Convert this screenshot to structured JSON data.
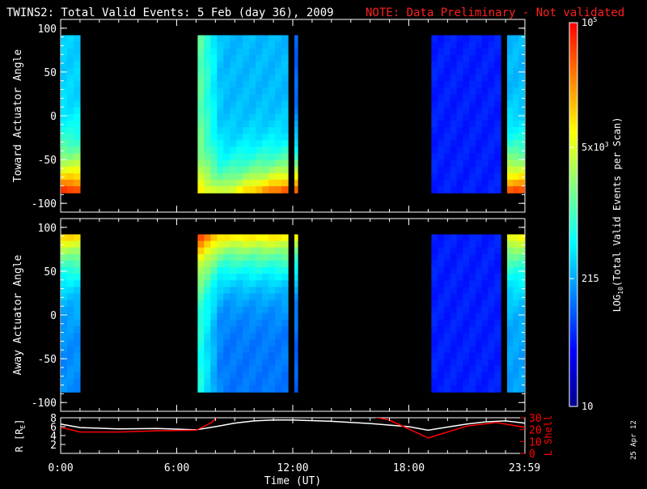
{
  "header": {
    "title": "TWINS2: Total Valid Events:  5 Feb (day  36), 2009",
    "note": "NOTE: Data Preliminary - Not validated",
    "note_color": "#ff2020"
  },
  "footer": {
    "date_stamp": "25 Apr 12"
  },
  "colorbar": {
    "label_main": "LOG",
    "label_sub": "10",
    "label_rest": "(Total Valid Events per Scan)",
    "ticks": [
      {
        "value": 10,
        "base": "10",
        "exp": ""
      },
      {
        "value": 215,
        "base": "215",
        "exp": ""
      },
      {
        "value": 5000,
        "base": "5x10",
        "exp": "3"
      },
      {
        "value": 100000,
        "base": "10",
        "exp": "5"
      }
    ],
    "range": [
      10,
      100000
    ],
    "scale": "log",
    "colormap": [
      "#00008f",
      "#0000ff",
      "#0080ff",
      "#00ffff",
      "#80ff80",
      "#ffff00",
      "#ff8000",
      "#ff0000"
    ]
  },
  "chart_data": [
    {
      "type": "heatmap",
      "ylabel": "Toward Actuator Angle",
      "ylim": [
        -110,
        110
      ],
      "yticks": [
        "100",
        "50",
        "0",
        "-50",
        "-100"
      ],
      "ytick_values": [
        100,
        50,
        0,
        -50,
        -100
      ],
      "x_range_hours": [
        0,
        24
      ],
      "data_y_range": [
        -88,
        92
      ],
      "segments": [
        {
          "start": "00:00",
          "end": "01:00",
          "base_log": 2.5,
          "edge_log": 4.7,
          "edge": "bottom"
        },
        {
          "start": "07:05",
          "end": "11:45",
          "base_log": 2.4,
          "edge_log": 4.6,
          "edge": "bottom-right"
        },
        {
          "start": "12:05",
          "end": "12:15",
          "base_log": 2.0,
          "edge_log": 4.6,
          "edge": "bottom"
        },
        {
          "start": "19:10",
          "end": "22:45",
          "base_log": 1.7,
          "edge_log": 2.1,
          "edge": "none"
        },
        {
          "start": "23:05",
          "end": "23:59",
          "base_log": 2.4,
          "edge_log": 4.6,
          "edge": "bottom"
        }
      ]
    },
    {
      "type": "heatmap",
      "ylabel": "Away Actuator Angle",
      "ylim": [
        -110,
        110
      ],
      "yticks": [
        "100",
        "50",
        "0",
        "-50",
        "-100"
      ],
      "ytick_values": [
        100,
        50,
        0,
        -50,
        -100
      ],
      "x_range_hours": [
        0,
        24
      ],
      "data_y_range": [
        -88,
        92
      ],
      "segments": [
        {
          "start": "00:00",
          "end": "01:00",
          "base_log": 2.2,
          "edge_log": 4.0,
          "edge": "top"
        },
        {
          "start": "07:05",
          "end": "11:45",
          "base_log": 2.1,
          "edge_log": 3.9,
          "edge": "top"
        },
        {
          "start": "12:05",
          "end": "12:15",
          "base_log": 2.0,
          "edge_log": 3.8,
          "edge": "top"
        },
        {
          "start": "19:10",
          "end": "22:45",
          "base_log": 1.7,
          "edge_log": 2.0,
          "edge": "none"
        },
        {
          "start": "23:05",
          "end": "23:59",
          "base_log": 2.3,
          "edge_log": 3.8,
          "edge": "top"
        }
      ]
    },
    {
      "type": "line",
      "xlabel": "Time (UT)",
      "xticks": [
        "0:00",
        "6:00",
        "12:00",
        "18:00",
        "23:59"
      ],
      "xtick_hours": [
        0,
        6,
        12,
        18,
        23.983
      ],
      "ylabel_left": "R [R",
      "ylabel_left_sub": "E",
      "ylabel_left_end": "]",
      "ylim_left": [
        0,
        8
      ],
      "yticks_left": [
        "8",
        "6",
        "4",
        "2"
      ],
      "ytick_left_values": [
        8,
        6,
        4,
        2
      ],
      "ylabel_right": "L Shell",
      "ylim_right": [
        0,
        30
      ],
      "yticks_right": [
        "30",
        "20",
        "10",
        "0"
      ],
      "ytick_right_values": [
        30,
        20,
        10,
        0
      ],
      "series": [
        {
          "name": "R",
          "color": "#ffffff",
          "axis": "left",
          "x": [
            0,
            1,
            3,
            5,
            7,
            8,
            9,
            10,
            11,
            12,
            14,
            16,
            18,
            19,
            20,
            21,
            22,
            23,
            24
          ],
          "y": [
            6.6,
            5.8,
            5.5,
            5.6,
            5.3,
            6.0,
            6.8,
            7.3,
            7.5,
            7.5,
            7.2,
            6.7,
            6.0,
            5.2,
            5.9,
            6.6,
            7.1,
            7.3,
            6.8
          ]
        },
        {
          "name": "L Shell",
          "color": "#ff0000",
          "axis": "right",
          "x": [
            0,
            1,
            3,
            5,
            7,
            7.8,
            8.5,
            15.5,
            17,
            19,
            21,
            22.5,
            24
          ],
          "y": [
            22,
            18,
            18,
            19,
            19.5,
            26,
            38,
            33,
            28,
            13,
            23,
            26,
            22
          ]
        }
      ]
    }
  ]
}
